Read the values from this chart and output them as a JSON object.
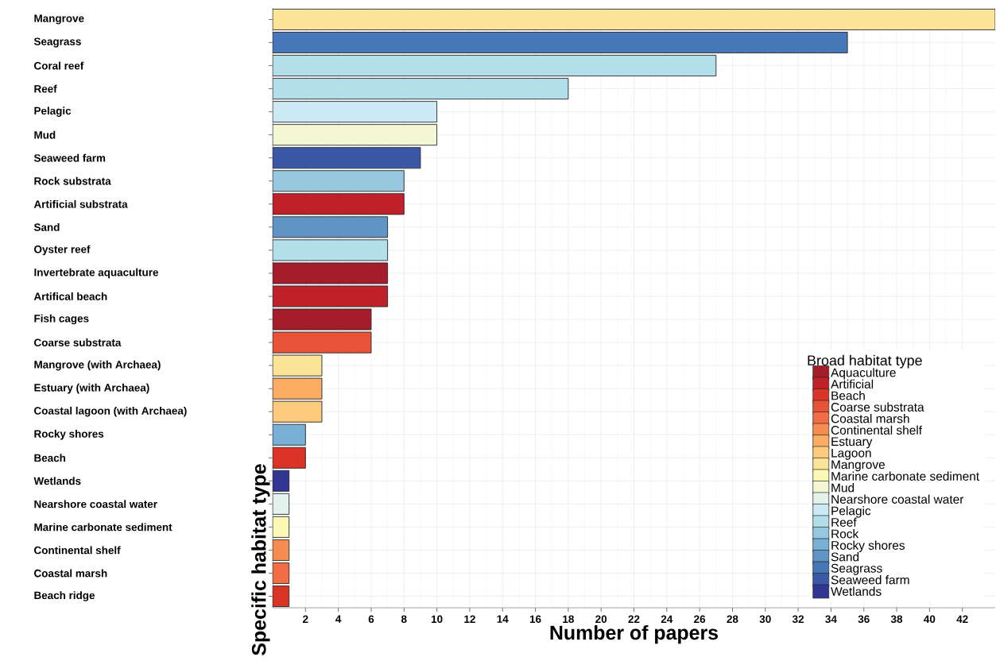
{
  "chart_data": {
    "type": "bar",
    "orientation": "horizontal",
    "xlabel": "Number of papers",
    "ylabel": "Specific habitat type",
    "legend_title": "Broad habitat type",
    "categories": [
      "Mangrove",
      "Seagrass",
      "Coral reef",
      "Reef",
      "Pelagic",
      "Mud",
      "Seaweed farm",
      "Rock substrata",
      "Artificial substrata",
      "Sand",
      "Oyster reef",
      "Invertebrate aquaculture",
      "Artifical beach",
      "Fish cages",
      "Coarse substrata",
      "Mangrove (with Archaea)",
      "Estuary (with Archaea)",
      "Coastal lagoon (with Archaea)",
      "Rocky shores",
      "Beach",
      "Wetlands",
      "Nearshore coastal water",
      "Marine carbonate sediment",
      "Continental shelf",
      "Coastal marsh",
      "Beach ridge"
    ],
    "series": [
      {
        "name": "Aquaculture",
        "color": "#a51c2a",
        "values": [
          null,
          null,
          null,
          null,
          null,
          null,
          null,
          null,
          null,
          null,
          null,
          7,
          null,
          6,
          null,
          null,
          null,
          null,
          null,
          null,
          null,
          null,
          null,
          null,
          null,
          null
        ]
      },
      {
        "name": "Artificial",
        "color": "#c0202a",
        "values": [
          null,
          null,
          null,
          null,
          null,
          null,
          null,
          null,
          8,
          null,
          null,
          null,
          7,
          null,
          null,
          null,
          null,
          null,
          null,
          null,
          null,
          null,
          null,
          null,
          null,
          null
        ]
      },
      {
        "name": "Beach",
        "color": "#dc3327",
        "values": [
          null,
          null,
          null,
          null,
          null,
          null,
          null,
          null,
          null,
          null,
          null,
          null,
          null,
          null,
          null,
          null,
          null,
          null,
          null,
          2,
          null,
          null,
          null,
          null,
          null,
          1
        ]
      },
      {
        "name": "Coarse substrata",
        "color": "#e85237",
        "values": [
          null,
          null,
          null,
          null,
          null,
          null,
          null,
          null,
          null,
          null,
          null,
          null,
          null,
          null,
          6,
          null,
          null,
          null,
          null,
          null,
          null,
          null,
          null,
          null,
          null,
          null
        ]
      },
      {
        "name": "Coastal marsh",
        "color": "#f26d45",
        "values": [
          null,
          null,
          null,
          null,
          null,
          null,
          null,
          null,
          null,
          null,
          null,
          null,
          null,
          null,
          null,
          null,
          null,
          null,
          null,
          null,
          null,
          null,
          null,
          null,
          1,
          null
        ]
      },
      {
        "name": "Continental shelf",
        "color": "#f88d52",
        "values": [
          null,
          null,
          null,
          null,
          null,
          null,
          null,
          null,
          null,
          null,
          null,
          null,
          null,
          null,
          null,
          null,
          null,
          null,
          null,
          null,
          null,
          null,
          null,
          1,
          null,
          null
        ]
      },
      {
        "name": "Estuary",
        "color": "#fbad64",
        "values": [
          null,
          null,
          null,
          null,
          null,
          null,
          null,
          null,
          null,
          null,
          null,
          null,
          null,
          null,
          null,
          null,
          3,
          null,
          null,
          null,
          null,
          null,
          null,
          null,
          null,
          null
        ]
      },
      {
        "name": "Lagoon",
        "color": "#fdcb7e",
        "values": [
          null,
          null,
          null,
          null,
          null,
          null,
          null,
          null,
          null,
          null,
          null,
          null,
          null,
          null,
          null,
          null,
          null,
          3,
          null,
          null,
          null,
          null,
          null,
          null,
          null,
          null
        ]
      },
      {
        "name": "Mangrove",
        "color": "#fbe497",
        "values": [
          44,
          null,
          null,
          null,
          null,
          null,
          null,
          null,
          null,
          null,
          null,
          null,
          null,
          null,
          null,
          3,
          null,
          null,
          null,
          null,
          null,
          null,
          null,
          null,
          null,
          null
        ]
      },
      {
        "name": "Marine carbonate sediment",
        "color": "#fbf8b6",
        "values": [
          null,
          null,
          null,
          null,
          null,
          null,
          null,
          null,
          null,
          null,
          null,
          null,
          null,
          null,
          null,
          null,
          null,
          null,
          null,
          null,
          null,
          null,
          1,
          null,
          null,
          null
        ]
      },
      {
        "name": "Mud",
        "color": "#f4f7d4",
        "values": [
          null,
          null,
          null,
          null,
          null,
          10,
          null,
          null,
          null,
          null,
          null,
          null,
          null,
          null,
          null,
          null,
          null,
          null,
          null,
          null,
          null,
          null,
          null,
          null,
          null,
          null
        ]
      },
      {
        "name": "Nearshore coastal water",
        "color": "#e3f2ea",
        "values": [
          null,
          null,
          null,
          null,
          null,
          null,
          null,
          null,
          null,
          null,
          null,
          null,
          null,
          null,
          null,
          null,
          null,
          null,
          null,
          null,
          null,
          1,
          null,
          null,
          null,
          null
        ]
      },
      {
        "name": "Pelagic",
        "color": "#cde9f3",
        "values": [
          null,
          null,
          null,
          null,
          10,
          null,
          null,
          null,
          null,
          null,
          null,
          null,
          null,
          null,
          null,
          null,
          null,
          null,
          null,
          null,
          null,
          null,
          null,
          null,
          null,
          null
        ]
      },
      {
        "name": "Reef",
        "color": "#b3dfeb",
        "values": [
          null,
          null,
          27,
          18,
          null,
          null,
          null,
          null,
          null,
          null,
          7,
          null,
          null,
          null,
          null,
          null,
          null,
          null,
          null,
          null,
          null,
          null,
          null,
          null,
          null,
          null
        ]
      },
      {
        "name": "Rock",
        "color": "#96c8df",
        "values": [
          null,
          null,
          null,
          null,
          null,
          null,
          null,
          8,
          null,
          null,
          null,
          null,
          null,
          null,
          null,
          null,
          null,
          null,
          null,
          null,
          null,
          null,
          null,
          null,
          null,
          null
        ]
      },
      {
        "name": "Rocky shores",
        "color": "#78afd5",
        "values": [
          null,
          null,
          null,
          null,
          null,
          null,
          null,
          null,
          null,
          null,
          null,
          null,
          null,
          null,
          null,
          null,
          null,
          null,
          2,
          null,
          null,
          null,
          null,
          null,
          null,
          null
        ]
      },
      {
        "name": "Sand",
        "color": "#6094c4",
        "values": [
          null,
          null,
          null,
          null,
          null,
          null,
          null,
          null,
          null,
          7,
          null,
          null,
          null,
          null,
          null,
          null,
          null,
          null,
          null,
          null,
          null,
          null,
          null,
          null,
          null,
          null
        ]
      },
      {
        "name": "Seagrass",
        "color": "#4677b8",
        "values": [
          null,
          35,
          null,
          null,
          null,
          null,
          null,
          null,
          null,
          null,
          null,
          null,
          null,
          null,
          null,
          null,
          null,
          null,
          null,
          null,
          null,
          null,
          null,
          null,
          null,
          null
        ]
      },
      {
        "name": "Seaweed farm",
        "color": "#3b58a6",
        "values": [
          null,
          null,
          null,
          null,
          null,
          null,
          9,
          null,
          null,
          null,
          null,
          null,
          null,
          null,
          null,
          null,
          null,
          null,
          null,
          null,
          null,
          null,
          null,
          null,
          null,
          null
        ]
      },
      {
        "name": "Wetlands",
        "color": "#313695",
        "values": [
          null,
          null,
          null,
          null,
          null,
          null,
          null,
          null,
          null,
          null,
          null,
          null,
          null,
          null,
          null,
          null,
          null,
          null,
          null,
          null,
          1,
          null,
          null,
          null,
          null,
          null
        ]
      }
    ],
    "xlim": [
      0,
      44
    ],
    "xticks": [
      2,
      4,
      6,
      8,
      10,
      12,
      14,
      16,
      18,
      20,
      22,
      24,
      26,
      28,
      30,
      32,
      34,
      36,
      38,
      40,
      42
    ],
    "grid": true,
    "legend": "bottom right"
  }
}
